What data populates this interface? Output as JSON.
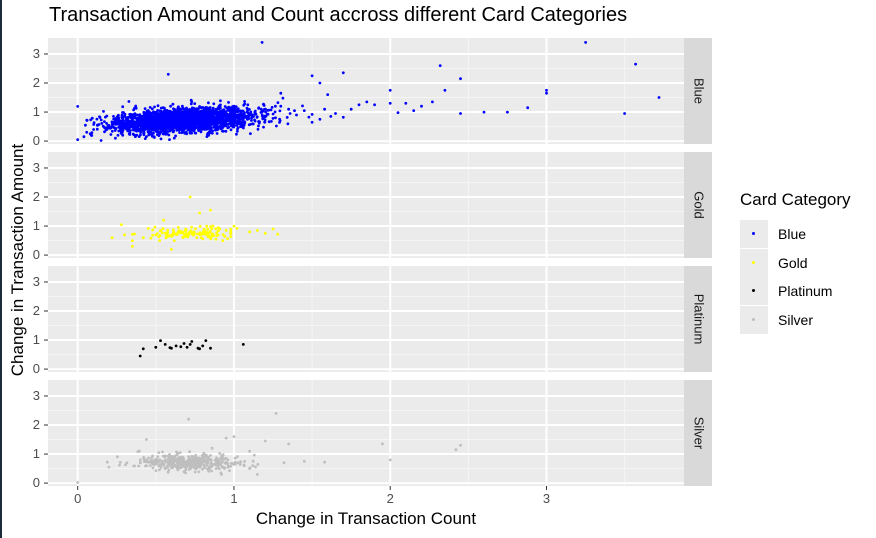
{
  "chart_data": {
    "type": "scatter",
    "title": "Transaction Amount and Count accross different Card Categories",
    "xlabel": "Change in Transaction Count",
    "ylabel": "Change in Transaction Amount",
    "xlim": [
      -0.19,
      3.88
    ],
    "ylim": [
      -0.1,
      3.55
    ],
    "x_ticks": [
      0,
      1,
      2,
      3
    ],
    "y_ticks": [
      0,
      1,
      2,
      3
    ],
    "facet_by": "Card Category",
    "grid": true,
    "legend": {
      "title": "Card Category",
      "placement": "right",
      "items": [
        {
          "label": "Blue",
          "color": "#0000ff"
        },
        {
          "label": "Gold",
          "color": "#ffff00"
        },
        {
          "label": "Platinum",
          "color": "#000000"
        },
        {
          "label": "Silver",
          "color": "#bebebe"
        }
      ]
    },
    "series": [
      {
        "name": "Blue",
        "color": "#0000ff",
        "cluster": {
          "n": 2600,
          "seed": 11,
          "x_mean": 0.68,
          "x_sd": 0.22,
          "x_min": 0.0,
          "x_max": 1.5,
          "y_mean": 0.72,
          "y_sd": 0.2,
          "y_slope": 0.3,
          "y_min": 0.0,
          "y_max": 1.8
        },
        "points": [
          [
            1.18,
            3.4
          ],
          [
            3.25,
            3.4
          ],
          [
            2.32,
            2.6
          ],
          [
            3.57,
            2.65
          ],
          [
            2.45,
            2.15
          ],
          [
            2.35,
            1.75
          ],
          [
            3.0,
            1.75
          ],
          [
            3.0,
            1.65
          ],
          [
            3.72,
            1.5
          ],
          [
            2.6,
            1.0
          ],
          [
            2.45,
            0.95
          ],
          [
            2.75,
            1.0
          ],
          [
            2.88,
            1.15
          ],
          [
            3.5,
            0.95
          ],
          [
            2.1,
            1.3
          ],
          [
            2.2,
            1.2
          ],
          [
            2.27,
            1.35
          ],
          [
            2.0,
            1.75
          ],
          [
            2.0,
            1.3
          ],
          [
            1.9,
            1.25
          ],
          [
            1.85,
            1.35
          ],
          [
            1.7,
            2.35
          ],
          [
            1.6,
            1.6
          ],
          [
            1.5,
            2.25
          ],
          [
            1.55,
            2.0
          ],
          [
            1.8,
            1.25
          ],
          [
            1.75,
            1.1
          ],
          [
            1.65,
            0.95
          ],
          [
            1.58,
            1.1
          ],
          [
            1.45,
            1.05
          ],
          [
            1.4,
            0.9
          ],
          [
            1.35,
            1.1
          ],
          [
            1.3,
            1.65
          ],
          [
            0.58,
            2.3
          ],
          [
            1.62,
            0.85
          ],
          [
            1.55,
            0.75
          ],
          [
            1.7,
            0.82
          ],
          [
            1.5,
            0.92
          ],
          [
            2.05,
            0.98
          ],
          [
            2.15,
            1.05
          ],
          [
            1.25,
            0.78
          ],
          [
            1.3,
            1.2
          ],
          [
            0.0,
            0.05
          ],
          [
            0.04,
            0.15
          ],
          [
            0.15,
            0.02
          ],
          [
            0.08,
            0.25
          ]
        ]
      },
      {
        "name": "Gold",
        "color": "#ffff00",
        "cluster": {
          "n": 130,
          "seed": 22,
          "x_mean": 0.72,
          "x_sd": 0.13,
          "x_min": 0.35,
          "x_max": 0.98,
          "y_mean": 0.75,
          "y_sd": 0.1,
          "y_slope": 0.0,
          "y_min": 0.5,
          "y_max": 1.05
        },
        "points": [
          [
            0.72,
            2.0
          ],
          [
            0.85,
            1.55
          ],
          [
            0.78,
            1.45
          ],
          [
            0.55,
            1.2
          ],
          [
            0.22,
            0.6
          ],
          [
            0.28,
            1.05
          ],
          [
            0.3,
            0.7
          ],
          [
            0.35,
            0.5
          ],
          [
            0.35,
            0.3
          ],
          [
            0.42,
            0.6
          ],
          [
            0.6,
            0.2
          ],
          [
            1.0,
            1.0
          ],
          [
            1.1,
            0.8
          ],
          [
            1.15,
            0.85
          ],
          [
            1.2,
            0.75
          ],
          [
            1.25,
            0.9
          ],
          [
            1.28,
            0.72
          ],
          [
            0.95,
            0.85
          ],
          [
            0.9,
            0.95
          ],
          [
            1.02,
            0.92
          ]
        ]
      },
      {
        "name": "Platinum",
        "color": "#000000",
        "cluster": {
          "n": 0,
          "seed": 33,
          "x_mean": 0,
          "x_sd": 0,
          "x_min": 0,
          "x_max": 0,
          "y_mean": 0,
          "y_sd": 0,
          "y_slope": 0,
          "y_min": 0,
          "y_max": 0
        },
        "points": [
          [
            0.4,
            0.45
          ],
          [
            0.42,
            0.7
          ],
          [
            0.5,
            0.75
          ],
          [
            0.53,
            0.98
          ],
          [
            0.56,
            0.85
          ],
          [
            0.6,
            0.72
          ],
          [
            0.63,
            0.8
          ],
          [
            0.68,
            0.88
          ],
          [
            0.7,
            0.75
          ],
          [
            0.72,
            0.85
          ],
          [
            0.73,
            0.95
          ],
          [
            0.77,
            0.72
          ],
          [
            0.78,
            0.7
          ],
          [
            0.8,
            0.8
          ],
          [
            0.82,
            0.98
          ],
          [
            0.85,
            0.72
          ],
          [
            1.06,
            0.85
          ],
          [
            0.66,
            0.77
          ],
          [
            0.59,
            0.74
          ]
        ]
      },
      {
        "name": "Silver",
        "color": "#bebebe",
        "cluster": {
          "n": 420,
          "seed": 44,
          "x_mean": 0.7,
          "x_sd": 0.17,
          "x_min": 0.18,
          "x_max": 1.3,
          "y_mean": 0.72,
          "y_sd": 0.15,
          "y_slope": 0.0,
          "y_min": 0.35,
          "y_max": 1.2
        },
        "points": [
          [
            1.27,
            2.4
          ],
          [
            0.71,
            2.2
          ],
          [
            0.44,
            1.5
          ],
          [
            1.0,
            1.6
          ],
          [
            0.95,
            1.55
          ],
          [
            1.2,
            1.45
          ],
          [
            1.35,
            1.35
          ],
          [
            1.95,
            1.35
          ],
          [
            2.45,
            1.3
          ],
          [
            2.42,
            1.15
          ],
          [
            2.0,
            0.8
          ],
          [
            1.45,
            0.75
          ],
          [
            1.58,
            0.72
          ],
          [
            1.32,
            0.7
          ],
          [
            1.1,
            0.5
          ],
          [
            1.15,
            0.3
          ],
          [
            1.12,
            0.6
          ],
          [
            0.2,
            0.55
          ],
          [
            0.0,
            0.02
          ],
          [
            0.92,
            0.3
          ],
          [
            0.86,
            1.2
          ],
          [
            0.52,
            1.05
          ],
          [
            1.1,
            1.1
          ]
        ]
      }
    ]
  }
}
